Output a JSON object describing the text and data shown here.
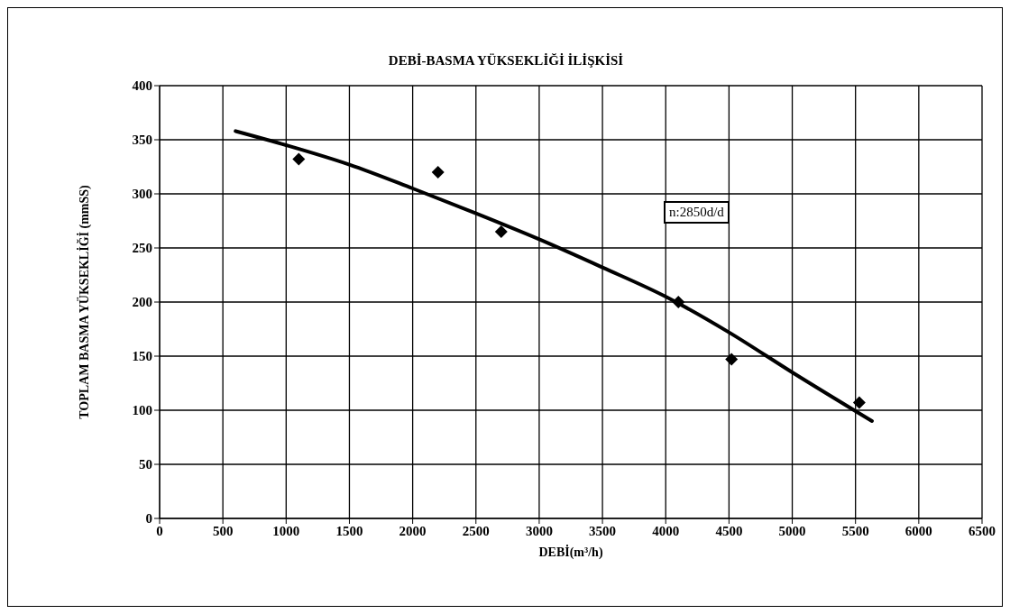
{
  "chart_data": {
    "type": "scatter",
    "title": "DEBİ-BASMA YÜKSEKLİĞİ İLİŞKİSİ",
    "xlabel": "DEBİ(m³/h)",
    "ylabel": "TOPLAM BASMA YÜKSEKLİĞİ (mmSS)",
    "annotations": [
      "n:2850d/d"
    ],
    "xlim": [
      0,
      6500
    ],
    "xticks": [
      0,
      500,
      1000,
      1500,
      2000,
      2500,
      3000,
      3500,
      4000,
      4500,
      5000,
      5500,
      6000,
      6500
    ],
    "ylim": [
      0,
      400
    ],
    "yticks": [
      0,
      50,
      100,
      150,
      200,
      250,
      300,
      350,
      400
    ],
    "grid": true,
    "series": [
      {
        "color": "#000000",
        "marker": "diamond",
        "x": [
          1100,
          2200,
          2700,
          4100,
          4520,
          5530
        ],
        "values": [
          332,
          320,
          265,
          200,
          147,
          107
        ]
      },
      {
        "type": "line",
        "color": "#000000",
        "marker": "none",
        "line_style": "solid",
        "x": [
          600,
          1000,
          1500,
          2000,
          2500,
          3000,
          3500,
          4000,
          4500,
          5000,
          5630
        ],
        "values": [
          358,
          345,
          327,
          305,
          282,
          258,
          232,
          205,
          172,
          135,
          90
        ]
      }
    ]
  }
}
